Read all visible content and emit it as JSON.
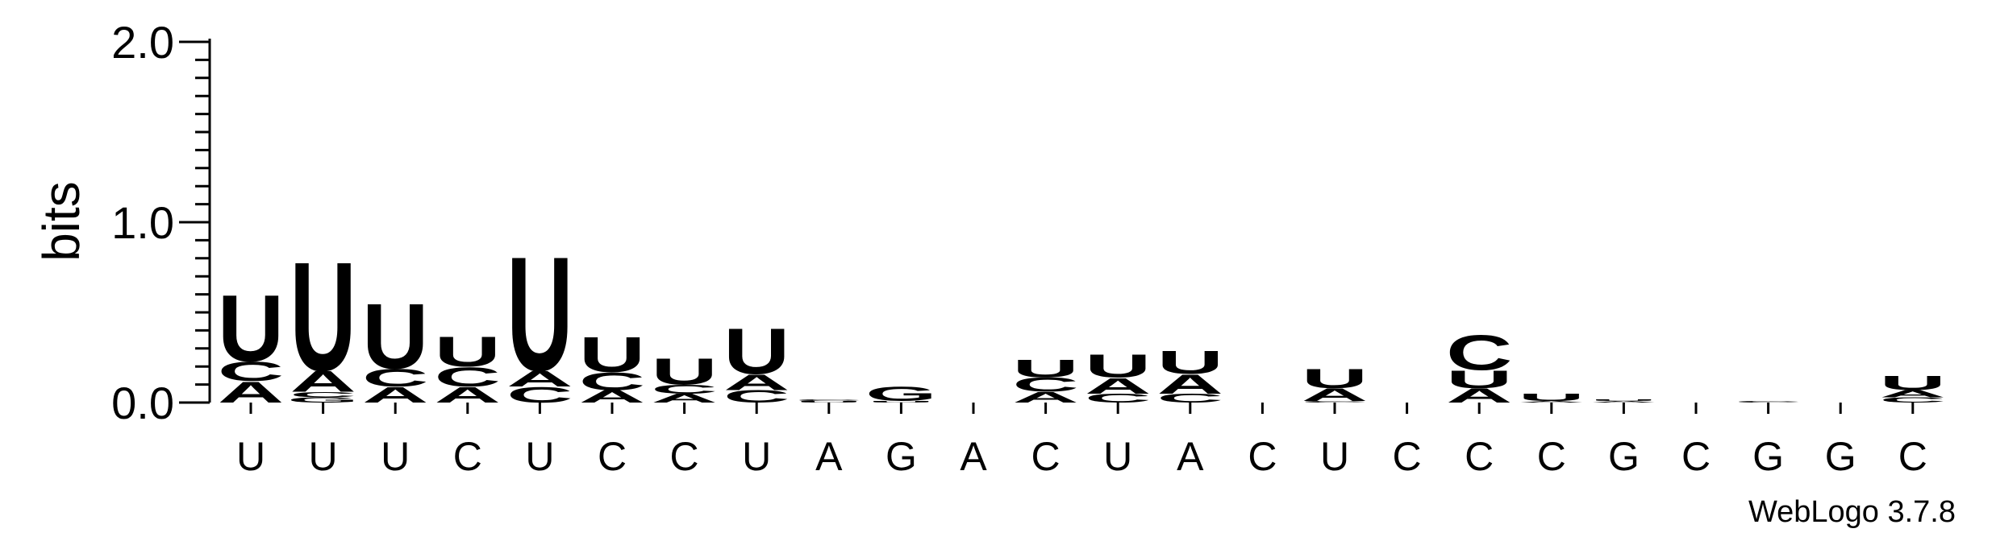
{
  "chart_data": {
    "type": "sequence-logo",
    "ylabel": "bits",
    "ylim": [
      0,
      2.0
    ],
    "yticks": [
      "0.0",
      "1.0",
      "2.0"
    ],
    "y_minor_step": 0.1,
    "colors": {
      "A": "#ff8c00",
      "C": "#0000ff",
      "G": "#0000ff",
      "U": "#ff8c00"
    },
    "xtick_labels": [
      "U",
      "U",
      "U",
      "C",
      "U",
      "C",
      "C",
      "U",
      "A",
      "G",
      "A",
      "C",
      "U",
      "A",
      "C",
      "U",
      "C",
      "C",
      "C",
      "G",
      "C",
      "G",
      "G",
      "C"
    ],
    "stacks": [
      [
        {
          "l": "A",
          "v": 0.12
        },
        {
          "l": "C",
          "v": 0.11
        },
        {
          "l": "U",
          "v": 0.38
        }
      ],
      [
        {
          "l": "G",
          "v": 0.03
        },
        {
          "l": "C",
          "v": 0.03
        },
        {
          "l": "A",
          "v": 0.12
        },
        {
          "l": "U",
          "v": 0.62
        }
      ],
      [
        {
          "l": "A",
          "v": 0.09
        },
        {
          "l": "C",
          "v": 0.1
        },
        {
          "l": "U",
          "v": 0.37
        }
      ],
      [
        {
          "l": "A",
          "v": 0.09
        },
        {
          "l": "C",
          "v": 0.11
        },
        {
          "l": "U",
          "v": 0.17
        }
      ],
      [
        {
          "l": "C",
          "v": 0.09
        },
        {
          "l": "A",
          "v": 0.09
        },
        {
          "l": "U",
          "v": 0.65
        }
      ],
      [
        {
          "l": "A",
          "v": 0.07
        },
        {
          "l": "C",
          "v": 0.1
        },
        {
          "l": "U",
          "v": 0.2
        }
      ],
      [
        {
          "l": "A",
          "v": 0.05
        },
        {
          "l": "C",
          "v": 0.05
        },
        {
          "l": "U",
          "v": 0.15
        }
      ],
      [
        {
          "l": "C",
          "v": 0.07
        },
        {
          "l": "A",
          "v": 0.09
        },
        {
          "l": "U",
          "v": 0.26
        }
      ],
      [
        {
          "l": "U",
          "v": 0.01
        },
        {
          "l": "C",
          "v": 0.01
        }
      ],
      [
        {
          "l": "U",
          "v": 0.01
        },
        {
          "l": "G",
          "v": 0.08
        }
      ],
      [],
      [
        {
          "l": "A",
          "v": 0.06
        },
        {
          "l": "C",
          "v": 0.08
        },
        {
          "l": "U",
          "v": 0.1
        }
      ],
      [
        {
          "l": "C",
          "v": 0.05
        },
        {
          "l": "A",
          "v": 0.09
        },
        {
          "l": "U",
          "v": 0.13
        }
      ],
      [
        {
          "l": "C",
          "v": 0.05
        },
        {
          "l": "A",
          "v": 0.11
        },
        {
          "l": "U",
          "v": 0.13
        }
      ],
      [],
      [
        {
          "l": "C",
          "v": 0.01
        },
        {
          "l": "A",
          "v": 0.07
        },
        {
          "l": "U",
          "v": 0.11
        }
      ],
      [],
      [
        {
          "l": "A",
          "v": 0.08
        },
        {
          "l": "U",
          "v": 0.1
        },
        {
          "l": "C",
          "v": 0.2
        }
      ],
      [
        {
          "l": "A",
          "v": 0.01
        },
        {
          "l": "U",
          "v": 0.04
        }
      ],
      [
        {
          "l": "A",
          "v": 0.01
        },
        {
          "l": "U",
          "v": 0.01
        }
      ],
      [],
      [
        {
          "l": "C",
          "v": 0.01
        }
      ],
      [],
      [
        {
          "l": "C",
          "v": 0.03
        },
        {
          "l": "A",
          "v": 0.04
        },
        {
          "l": "U",
          "v": 0.08
        }
      ]
    ]
  },
  "credit": "WebLogo 3.7.8"
}
